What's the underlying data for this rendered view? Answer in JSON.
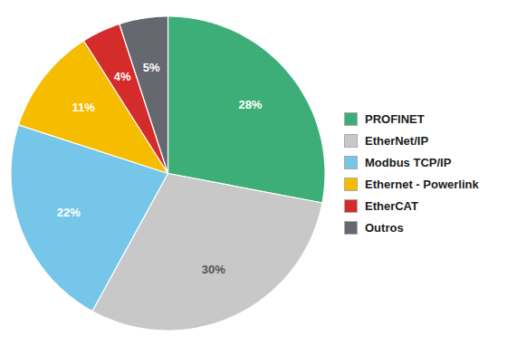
{
  "chart_data": {
    "type": "pie",
    "categories": [
      "PROFINET",
      "EtherNet/IP",
      "Modbus TCP/IP",
      "Ethernet - Powerlink",
      "EtherCAT",
      "Outros"
    ],
    "values": [
      28,
      30,
      22,
      11,
      4,
      5
    ],
    "value_labels": [
      "28%",
      "30%",
      "22%",
      "11%",
      "4%",
      "5%"
    ],
    "colors": [
      "#3dae78",
      "#c8c8c8",
      "#75c6e8",
      "#f5bc00",
      "#d42b2b",
      "#666870"
    ],
    "data_labels": true,
    "legend": "right"
  }
}
